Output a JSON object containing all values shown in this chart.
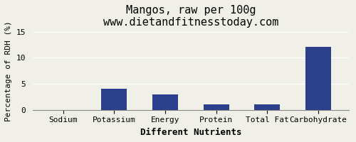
{
  "title": "Mangos, raw per 100g",
  "subtitle": "www.dietandfitnesstoday.com",
  "xlabel": "Different Nutrients",
  "ylabel": "Percentage of RDH (%)",
  "categories": [
    "Sodium",
    "Potassium",
    "Energy",
    "Protein",
    "Total Fat",
    "Carbohydrate"
  ],
  "values": [
    0.0,
    4.0,
    3.0,
    1.1,
    1.1,
    12.1
  ],
  "bar_color": "#2b3f8c",
  "ylim": [
    0,
    15
  ],
  "yticks": [
    0,
    5,
    10,
    15
  ],
  "background_color": "#f0f0e8",
  "title_fontsize": 11,
  "subtitle_fontsize": 9,
  "xlabel_fontsize": 9,
  "ylabel_fontsize": 8,
  "tick_fontsize": 8
}
